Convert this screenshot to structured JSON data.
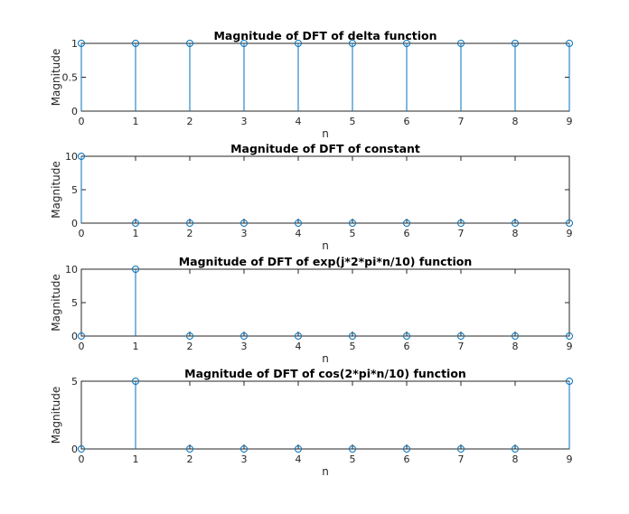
{
  "chart_data": [
    {
      "type": "stem",
      "title": "Magnitude of DFT of delta function",
      "xlabel": "n",
      "ylabel": "Magnitude",
      "xlim": [
        0,
        9
      ],
      "ylim": [
        0,
        1
      ],
      "xticks": [
        0,
        1,
        2,
        3,
        4,
        5,
        6,
        7,
        8,
        9
      ],
      "yticks": [
        0,
        0.5,
        1
      ],
      "x": [
        0,
        1,
        2,
        3,
        4,
        5,
        6,
        7,
        8,
        9
      ],
      "values": [
        1,
        1,
        1,
        1,
        1,
        1,
        1,
        1,
        1,
        1
      ]
    },
    {
      "type": "stem",
      "title": "Magnitude of DFT of constant",
      "xlabel": "n",
      "ylabel": "Magnitude",
      "xlim": [
        0,
        9
      ],
      "ylim": [
        0,
        10
      ],
      "xticks": [
        0,
        1,
        2,
        3,
        4,
        5,
        6,
        7,
        8,
        9
      ],
      "yticks": [
        0,
        5,
        10
      ],
      "x": [
        0,
        1,
        2,
        3,
        4,
        5,
        6,
        7,
        8,
        9
      ],
      "values": [
        10,
        0,
        0,
        0,
        0,
        0,
        0,
        0,
        0,
        0
      ]
    },
    {
      "type": "stem",
      "title": "Magnitude of DFT of exp(j*2*pi*n/10) function",
      "xlabel": "n",
      "ylabel": "Magnitude",
      "xlim": [
        0,
        9
      ],
      "ylim": [
        0,
        10
      ],
      "xticks": [
        0,
        1,
        2,
        3,
        4,
        5,
        6,
        7,
        8,
        9
      ],
      "yticks": [
        0,
        5,
        10
      ],
      "x": [
        0,
        1,
        2,
        3,
        4,
        5,
        6,
        7,
        8,
        9
      ],
      "values": [
        0,
        10,
        0,
        0,
        0,
        0,
        0,
        0,
        0,
        0
      ]
    },
    {
      "type": "stem",
      "title": "Magnitude of DFT of cos(2*pi*n/10) function",
      "xlabel": "n",
      "ylabel": "Magnitude",
      "xlim": [
        0,
        9
      ],
      "ylim": [
        0,
        5
      ],
      "xticks": [
        0,
        1,
        2,
        3,
        4,
        5,
        6,
        7,
        8,
        9
      ],
      "yticks": [
        0,
        5
      ],
      "x": [
        0,
        1,
        2,
        3,
        4,
        5,
        6,
        7,
        8,
        9
      ],
      "values": [
        0,
        5,
        0,
        0,
        0,
        0,
        0,
        0,
        0,
        5
      ]
    }
  ]
}
